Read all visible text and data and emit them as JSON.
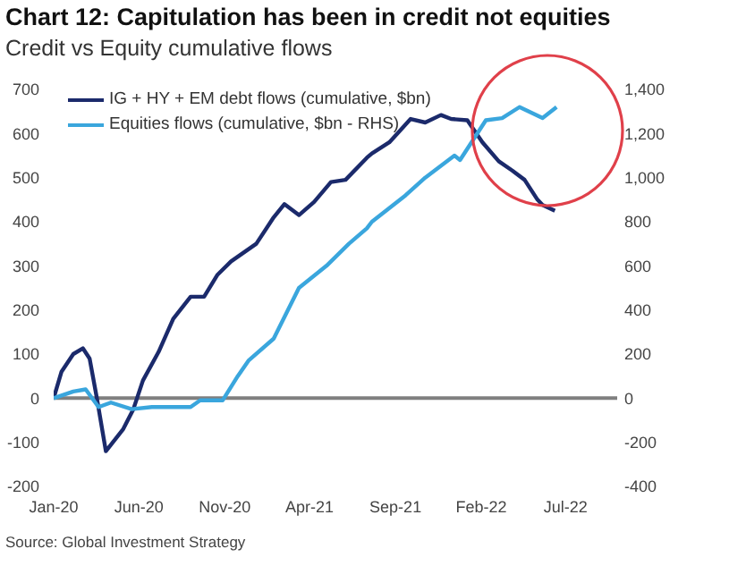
{
  "chart_data": {
    "type": "line",
    "title": "Chart 12: Capitulation has been in credit not equities",
    "subtitle": "Credit vs Equity cumulative flows",
    "xlim": [
      "2020-01-01",
      "2022-10-01"
    ],
    "xticks": [
      {
        "value": "2020-01-01",
        "label": "Jan-20"
      },
      {
        "value": "2020-06-01",
        "label": "Jun-20"
      },
      {
        "value": "2020-11-01",
        "label": "Nov-20"
      },
      {
        "value": "2021-04-01",
        "label": "Apr-21"
      },
      {
        "value": "2021-09-01",
        "label": "Sep-21"
      },
      {
        "value": "2022-02-01",
        "label": "Feb-22"
      },
      {
        "value": "2022-07-01",
        "label": "Jul-22"
      }
    ],
    "ylim": [
      -200,
      700
    ],
    "yticks": [
      -200,
      -100,
      0,
      100,
      200,
      300,
      400,
      500,
      600,
      700
    ],
    "y2lim": [
      -400,
      1400
    ],
    "y2ticks": [
      -400,
      -200,
      0,
      {
        "value": 200,
        "label": "200"
      },
      {
        "value": 400,
        "label": "400"
      },
      {
        "value": 600,
        "label": "600"
      },
      {
        "value": 800,
        "label": "800"
      },
      {
        "value": 1000,
        "label": "1,000"
      },
      {
        "value": 1200,
        "label": "1,200"
      },
      {
        "value": 1400,
        "label": "1,400"
      }
    ],
    "grid": false,
    "legend": "top left",
    "marker": "none",
    "line_style": "solid",
    "ref_lines": [
      {
        "axis": "y",
        "value": 0,
        "color": "#7f7f7f"
      }
    ],
    "annotations": [
      "Source: Global Investment Strategy"
    ],
    "series": [
      {
        "name": "IG + HY + EM debt flows (cumulative, $bn)",
        "color": "#1b2a6b",
        "x": [
          "2020-01-01",
          "2020-01-15",
          "2020-02-05",
          "2020-02-22",
          "2020-03-05",
          "2020-03-18",
          "2020-04-03",
          "2020-05-04",
          "2020-05-22",
          "2020-06-08",
          "2020-07-06",
          "2020-08-01",
          "2020-09-01",
          "2020-09-25",
          "2020-10-19",
          "2020-11-12",
          "2020-12-27",
          "2021-01-27",
          "2021-02-15",
          "2021-03-13",
          "2021-04-09",
          "2021-05-09",
          "2021-06-04",
          "2021-07-12",
          "2021-07-21",
          "2021-08-21",
          "2021-09-28",
          "2021-10-24",
          "2021-11-21",
          "2021-12-09",
          "2022-01-07",
          "2022-02-03",
          "2022-03-04",
          "2022-03-28",
          "2022-04-19",
          "2022-05-12",
          "2022-05-21",
          "2022-06-12"
        ],
        "values": [
          0,
          60,
          100,
          113,
          90,
          0,
          -120,
          -70,
          -25,
          40,
          105,
          180,
          230,
          230,
          280,
          310,
          350,
          410,
          440,
          415,
          445,
          490,
          495,
          545,
          555,
          580,
          633,
          625,
          642,
          633,
          630,
          580,
          537,
          516,
          495,
          450,
          438,
          425
        ]
      },
      {
        "name": "Equities flows (cumulative, $bn - RHS)",
        "color": "#3aa6dd",
        "axis": "y2",
        "x": [
          "2020-01-01",
          "2020-02-05",
          "2020-02-27",
          "2020-03-21",
          "2020-04-12",
          "2020-05-19",
          "2020-06-24",
          "2020-09-01",
          "2020-09-18",
          "2020-10-28",
          "2020-11-24",
          "2020-12-13",
          "2021-01-27",
          "2021-03-13",
          "2021-05-01",
          "2021-06-10",
          "2021-07-12",
          "2021-07-21",
          "2021-09-19",
          "2021-10-24",
          "2021-12-15",
          "2021-12-25",
          "2022-02-09",
          "2022-03-10",
          "2022-04-10",
          "2022-05-21",
          "2022-06-15"
        ],
        "values": [
          0,
          30,
          40,
          -40,
          -20,
          -50,
          -40,
          -40,
          -10,
          -10,
          100,
          170,
          270,
          500,
          600,
          700,
          770,
          800,
          920,
          1000,
          1100,
          1080,
          1260,
          1270,
          1320,
          1270,
          1320
        ]
      }
    ]
  }
}
